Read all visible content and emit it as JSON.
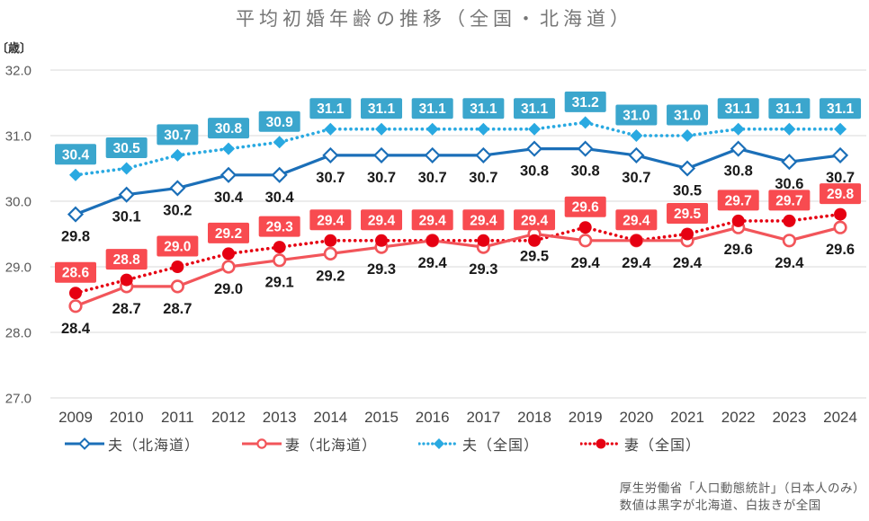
{
  "chart_data": {
    "type": "line",
    "title": "平均初婚年齢の推移（全国・北海道）",
    "y_unit_label": "〔歳〕",
    "x": [
      "2009",
      "2010",
      "2011",
      "2012",
      "2013",
      "2014",
      "2015",
      "2016",
      "2017",
      "2018",
      "2019",
      "2020",
      "2021",
      "2022",
      "2023",
      "2024"
    ],
    "ylim": [
      27.0,
      32.0
    ],
    "ytick_labels": [
      "32.0",
      "31.0",
      "30.0",
      "29.0",
      "28.0",
      "27.0"
    ],
    "yticks": [
      32.0,
      31.0,
      30.0,
      29.0,
      28.0,
      27.0
    ],
    "grid": "horizontal",
    "legend_position": "bottom",
    "series": [
      {
        "id": "husband-hokkaido",
        "name": "夫（北海道）",
        "line": "solid",
        "marker": "diamond-open",
        "color": "#1b6fb8",
        "label_style": "text",
        "label_color": "#1a1a1a",
        "values": [
          29.8,
          30.1,
          30.2,
          30.4,
          30.4,
          30.7,
          30.7,
          30.7,
          30.7,
          30.8,
          30.8,
          30.7,
          30.5,
          30.8,
          30.6,
          30.7
        ]
      },
      {
        "id": "wife-hokkaido",
        "name": "妻（北海道）",
        "line": "solid",
        "marker": "circle-open",
        "color": "#f2555a",
        "label_style": "text",
        "label_color": "#1a1a1a",
        "values": [
          28.4,
          28.7,
          28.7,
          29.0,
          29.1,
          29.2,
          29.3,
          29.4,
          29.3,
          29.5,
          29.4,
          29.4,
          29.4,
          29.6,
          29.4,
          29.6
        ]
      },
      {
        "id": "husband-national",
        "name": "夫（全国）",
        "line": "dotted",
        "marker": "diamond-filled",
        "color": "#29a9e1",
        "label_style": "box",
        "label_bg": "#3ba6cd",
        "label_color": "#ffffff",
        "values": [
          30.4,
          30.5,
          30.7,
          30.8,
          30.9,
          31.1,
          31.1,
          31.1,
          31.1,
          31.1,
          31.2,
          31.0,
          31.0,
          31.1,
          31.1,
          31.1
        ]
      },
      {
        "id": "wife-national",
        "name": "妻（全国）",
        "line": "dotted",
        "marker": "circle-filled",
        "color": "#e60012",
        "label_style": "box",
        "label_bg": "#f84b50",
        "label_color": "#ffffff",
        "values": [
          28.6,
          28.8,
          29.0,
          29.2,
          29.3,
          29.4,
          29.4,
          29.4,
          29.4,
          29.4,
          29.6,
          29.4,
          29.5,
          29.7,
          29.7,
          29.8
        ]
      }
    ]
  },
  "source_note": {
    "line1": "厚生労働省「人口動態統計」（日本人のみ）",
    "line2": "数値は黒字が北海道、白抜きが全国"
  },
  "colors": {
    "grid": "#d9d9d9",
    "title_text": "#767676",
    "axis_text": "#595959",
    "x_axis_text": "#444444",
    "unit_text": "#333333",
    "note_text": "#595959"
  }
}
